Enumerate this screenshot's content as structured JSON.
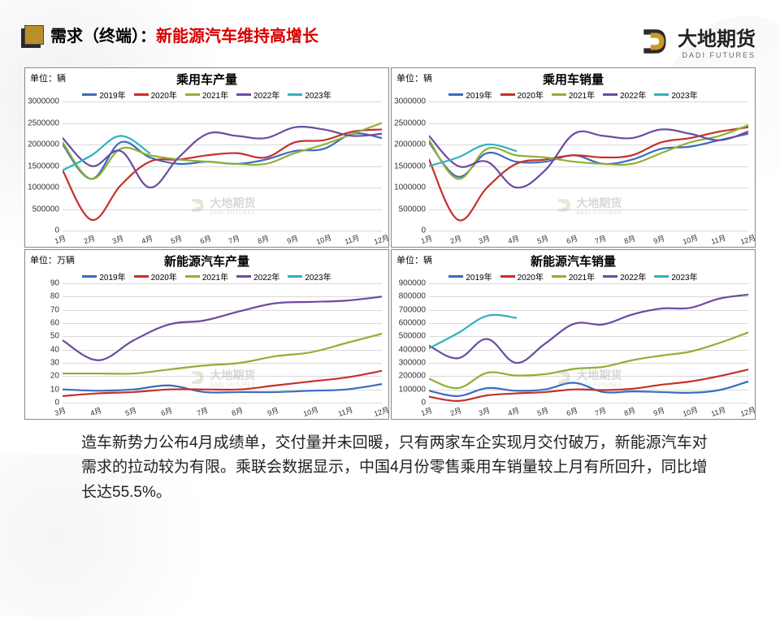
{
  "header": {
    "title_black": "需求（终端）：",
    "title_red": "新能源汽车维持高增长",
    "logo_text": "大地期货",
    "logo_sub": "DADI FUTURES"
  },
  "legend_labels": [
    "2019年",
    "2020年",
    "2021年",
    "2022年",
    "2023年"
  ],
  "colors": {
    "y2019": "#3a6bbf",
    "y2020": "#c6302a",
    "y2021": "#8fb035",
    "y2022": "#6d4aa0",
    "y2023": "#33b0bf",
    "grid": "#d9d9d9",
    "axis_text": "#333333",
    "title": "#000000",
    "title_red": "#d70000",
    "border": "#888888",
    "bg": "#ffffff",
    "logo_gold": "#c79a2a",
    "logo_dark": "#2a2a2a"
  },
  "charts": [
    {
      "id": "c1",
      "title": "乘用车产量",
      "unit": "单位：辆",
      "ylim": [
        0,
        3000000
      ],
      "ytick_step": 500000,
      "xlabels": [
        "1月",
        "2月",
        "3月",
        "4月",
        "5月",
        "6月",
        "7月",
        "8月",
        "9月",
        "10月",
        "11月",
        "12月"
      ],
      "series": {
        "y2019": [
          2000000,
          1200000,
          2050000,
          1700000,
          1550000,
          1600000,
          1550000,
          1650000,
          1850000,
          1900000,
          2250000,
          2150000
        ],
        "y2020": [
          1400000,
          250000,
          1050000,
          1600000,
          1650000,
          1750000,
          1800000,
          1700000,
          2050000,
          2100000,
          2300000,
          2350000
        ],
        "y2021": [
          2050000,
          1200000,
          1900000,
          1750000,
          1650000,
          1600000,
          1550000,
          1550000,
          1800000,
          2000000,
          2250000,
          2500000
        ],
        "y2022": [
          2150000,
          1500000,
          1850000,
          1000000,
          1700000,
          2250000,
          2200000,
          2150000,
          2400000,
          2350000,
          2200000,
          2250000
        ],
        "y2023": [
          1400000,
          1750000,
          2200000,
          1800000
        ]
      },
      "line_width": 2.2
    },
    {
      "id": "c2",
      "title": "乘用车销量",
      "unit": "单位：辆",
      "ylim": [
        0,
        3000000
      ],
      "ytick_step": 500000,
      "xlabels": [
        "1月",
        "2月",
        "3月",
        "4月",
        "5月",
        "6月",
        "7月",
        "8月",
        "9月",
        "10月",
        "11月",
        "12月"
      ],
      "series": {
        "y2019": [
          2050000,
          1250000,
          1800000,
          1600000,
          1600000,
          1750000,
          1550000,
          1650000,
          1900000,
          1950000,
          2100000,
          2250000
        ],
        "y2020": [
          1650000,
          250000,
          1000000,
          1550000,
          1650000,
          1750000,
          1700000,
          1750000,
          2050000,
          2150000,
          2300000,
          2400000
        ],
        "y2021": [
          2100000,
          1200000,
          1900000,
          1750000,
          1700000,
          1600000,
          1550000,
          1550000,
          1800000,
          2050000,
          2200000,
          2450000
        ],
        "y2022": [
          2200000,
          1500000,
          1600000,
          1000000,
          1400000,
          2250000,
          2200000,
          2150000,
          2350000,
          2250000,
          2100000,
          2300000
        ],
        "y2023": [
          1500000,
          1700000,
          2000000,
          1850000
        ]
      },
      "line_width": 2.2
    },
    {
      "id": "c3",
      "title": "新能源汽车产量",
      "unit": "单位：万辆",
      "ylim": [
        0,
        90
      ],
      "ytick_step": 10,
      "xlabels": [
        "3月",
        "4月",
        "5月",
        "6月",
        "7月",
        "8月",
        "9月",
        "10月",
        "11月",
        "12月"
      ],
      "series": {
        "y2019": [
          10,
          9,
          10,
          13,
          8,
          8,
          8,
          9,
          10,
          14
        ],
        "y2020": [
          5,
          7,
          8,
          10,
          10,
          10,
          13,
          16,
          19,
          24
        ],
        "y2021": [
          22,
          22,
          22,
          25,
          28,
          30,
          35,
          38,
          45,
          52
        ],
        "y2022": [
          47,
          32,
          47,
          59,
          62,
          69,
          75,
          76,
          77,
          80
        ],
        "y2023": []
      },
      "line_width": 2.2
    },
    {
      "id": "c4",
      "title": "新能源汽车销量",
      "unit": "单位：辆",
      "ylim": [
        0,
        900000
      ],
      "ytick_step": 100000,
      "xlabels": [
        "1月",
        "2月",
        "3月",
        "4月",
        "5月",
        "6月",
        "7月",
        "8月",
        "9月",
        "10月",
        "11月",
        "12月"
      ],
      "series": {
        "y2019": [
          90000,
          50000,
          110000,
          90000,
          100000,
          150000,
          80000,
          85000,
          80000,
          75000,
          95000,
          160000
        ],
        "y2020": [
          45000,
          13000,
          55000,
          70000,
          80000,
          100000,
          95000,
          105000,
          135000,
          160000,
          200000,
          250000
        ],
        "y2021": [
          180000,
          110000,
          225000,
          205000,
          215000,
          255000,
          270000,
          320000,
          355000,
          385000,
          450000,
          530000
        ],
        "y2022": [
          430000,
          335000,
          480000,
          300000,
          445000,
          595000,
          590000,
          665000,
          710000,
          715000,
          785000,
          815000
        ],
        "y2023": [
          410000,
          525000,
          655000,
          640000
        ]
      },
      "line_width": 2.2
    }
  ],
  "body_text": "造车新势力公布4月成绩单，交付量并未回暖，只有两家车企实现月交付破万，新能源汽车对需求的拉动较为有限。乘联会数据显示，中国4月份零售乘用车销量较上月有所回升，同比增长达55.5%。",
  "watermark": {
    "text": "大地期货",
    "sub": "DADI FUTURES"
  },
  "typography": {
    "title_fontsize": 20,
    "chart_title_fontsize": 15,
    "axis_fontsize": 10,
    "body_fontsize": 19
  }
}
